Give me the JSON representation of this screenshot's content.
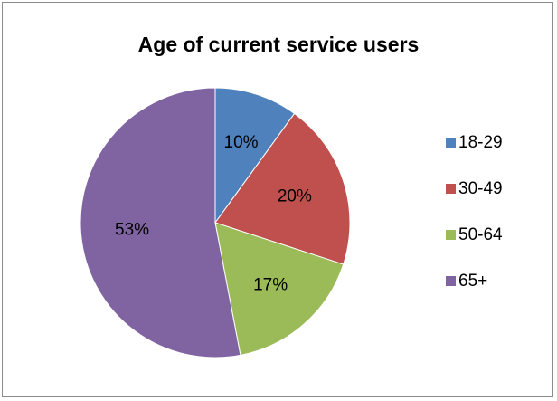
{
  "chart_data": {
    "type": "pie",
    "title": "Age of current service users",
    "categories": [
      "18-29",
      "30-49",
      "50-64",
      "65+"
    ],
    "values": [
      10,
      20,
      17,
      53
    ],
    "data_labels": [
      "10%",
      "20%",
      "17%",
      "53%"
    ],
    "colors": [
      "#4f81bd",
      "#c0504d",
      "#9bbb59",
      "#8064a2"
    ],
    "legend_position": "right"
  }
}
